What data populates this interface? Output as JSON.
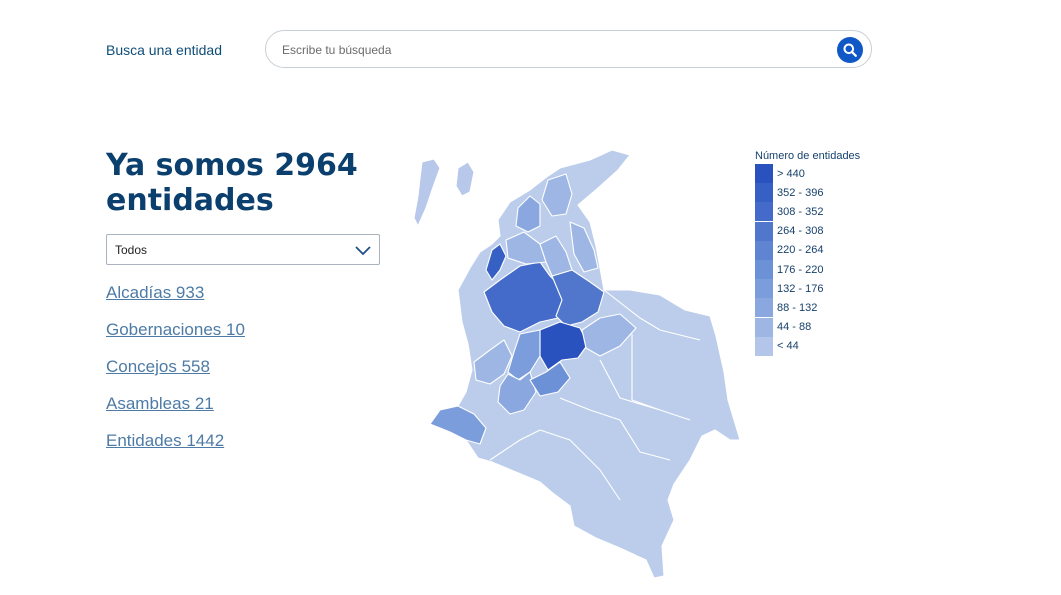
{
  "search": {
    "label": "Busca una entidad",
    "placeholder": "Escribe tu búsqueda",
    "icon": "search-icon"
  },
  "headline": "Ya somos 2964 entidades",
  "filter": {
    "selected": "Todos",
    "icon": "chevron-down-icon"
  },
  "links": [
    {
      "label": "Alcadías 933"
    },
    {
      "label": "Gobernaciones 10"
    },
    {
      "label": "Concejos 558"
    },
    {
      "label": "Asambleas 21"
    },
    {
      "label": "Entidades 1442"
    }
  ],
  "legend": {
    "title": "Número de entidades",
    "classes": [
      {
        "label": "> 440",
        "color": "#2a52be"
      },
      {
        "label": "352 - 396",
        "color": "#3760c4"
      },
      {
        "label": "308 - 352",
        "color": "#446bc9"
      },
      {
        "label": "264 - 308",
        "color": "#5177cd"
      },
      {
        "label": "220 - 264",
        "color": "#5f84d1"
      },
      {
        "label": "176 - 220",
        "color": "#6d91d6"
      },
      {
        "label": "132 - 176",
        "color": "#7c9ddb"
      },
      {
        "label": "88 - 132",
        "color": "#8aa8df"
      },
      {
        "label": "44 - 88",
        "color": "#9db6e4"
      },
      {
        "label": "< 44",
        "color": "#b3c6ea"
      }
    ]
  },
  "map": {
    "region": "Colombia",
    "base_color": "#bccdeb",
    "border_color": "#ffffff"
  }
}
